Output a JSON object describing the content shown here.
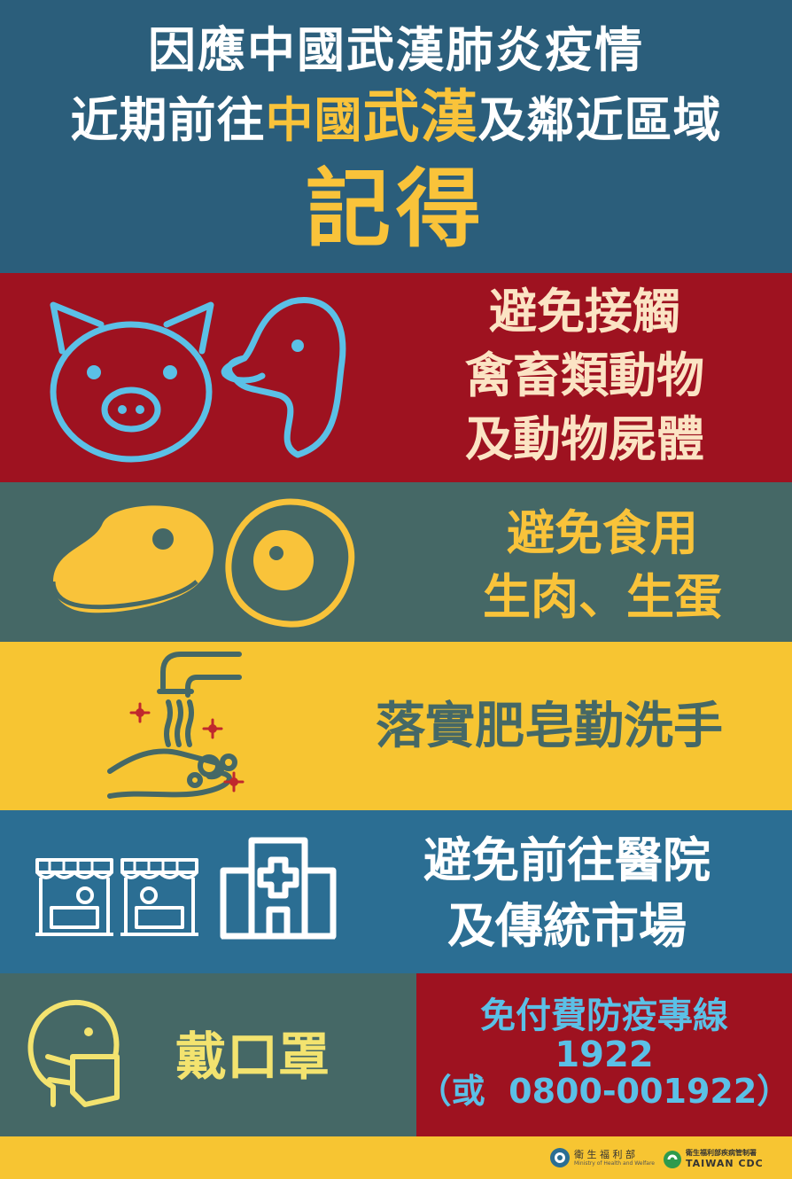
{
  "header": {
    "line1": "因應中國武漢肺炎疫情",
    "line2_pre": "近期前往",
    "line2_hl1": "中國",
    "line2_hl2": "武漢",
    "line2_post": "及鄰近區域",
    "line3": "記得"
  },
  "tips": [
    {
      "lines": [
        "避免接觸",
        "禽畜類動物",
        "及動物屍體"
      ],
      "icons": [
        "pig-icon",
        "duck-icon"
      ]
    },
    {
      "lines": [
        "避免食用",
        "生肉、生蛋"
      ],
      "icons": [
        "raw-meat-icon",
        "egg-icon"
      ]
    },
    {
      "lines": [
        "落實肥皂勤洗手"
      ],
      "icons": [
        "handwashing-icon"
      ]
    },
    {
      "lines": [
        "避免前往醫院",
        "及傳統市場"
      ],
      "icons": [
        "market-stall-icon",
        "market-stall-icon",
        "hospital-icon"
      ]
    },
    {
      "lines": [
        "戴口罩"
      ],
      "icons": [
        "face-mask-icon"
      ]
    }
  ],
  "hotline": {
    "title": "免付費防疫專線",
    "number": "1922",
    "alt": "（或  0800-001922）"
  },
  "footer": {
    "mohw_name": "衛 生 福 利 部",
    "mohw_en": "Ministry of Health and Welfare",
    "cdc_name": "衛生福利部疾病管制署",
    "cdc_en": "TAIWAN CDC"
  },
  "colors": {
    "navy": "#2b5e7b",
    "red": "#9e1220",
    "slate": "#456866",
    "yellow": "#f7c532",
    "blue": "#2b6e93",
    "cream": "#fbe4c4",
    "sky": "#5bc0e6"
  }
}
